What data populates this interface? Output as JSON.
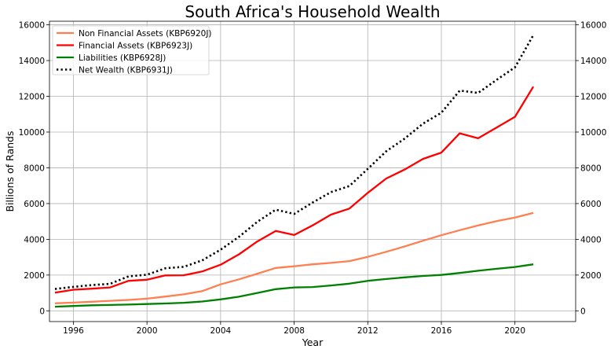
{
  "chart_data": {
    "type": "line",
    "title": "South Africa's Household Wealth",
    "xlabel": "Year",
    "ylabel": "Billions of Rands",
    "xlim": [
      1994.7,
      2023.3
    ],
    "ylim": [
      -600,
      16200
    ],
    "x_ticks": [
      1996,
      2000,
      2004,
      2008,
      2012,
      2016,
      2020
    ],
    "y_ticks": [
      0,
      2000,
      4000,
      6000,
      8000,
      10000,
      12000,
      14000,
      16000
    ],
    "grid": true,
    "legend_position": "top-left",
    "secondary_y_axis": true,
    "x": [
      1995,
      1996,
      1997,
      1998,
      1999,
      2000,
      2001,
      2002,
      2003,
      2004,
      2005,
      2006,
      2007,
      2008,
      2009,
      2010,
      2011,
      2012,
      2013,
      2014,
      2015,
      2016,
      2017,
      2018,
      2019,
      2020,
      2021
    ],
    "series": [
      {
        "name": "Non Financial Assets (KBP6920J)",
        "color": "#ff7f50",
        "style": "solid",
        "values": [
          420,
          460,
          510,
          560,
          610,
          680,
          800,
          920,
          1100,
          1480,
          1760,
          2080,
          2400,
          2490,
          2600,
          2680,
          2780,
          3020,
          3300,
          3600,
          3920,
          4230,
          4510,
          4780,
          5020,
          5220,
          5480
        ]
      },
      {
        "name": "Financial Assets (KBP6923J)",
        "color": "#ff0000",
        "style": "solid",
        "values": [
          1020,
          1180,
          1240,
          1310,
          1680,
          1740,
          1980,
          1990,
          2200,
          2580,
          3160,
          3880,
          4470,
          4240,
          4780,
          5380,
          5720,
          6600,
          7400,
          7900,
          8500,
          8850,
          9930,
          9650,
          10250,
          10850,
          12540
        ]
      },
      {
        "name": "Liabilities (KBP6928J)",
        "color": "#008000",
        "style": "solid",
        "values": [
          230,
          270,
          310,
          330,
          350,
          380,
          410,
          450,
          520,
          640,
          790,
          1000,
          1210,
          1310,
          1330,
          1420,
          1520,
          1680,
          1780,
          1870,
          1950,
          2010,
          2120,
          2240,
          2350,
          2450,
          2600
        ]
      },
      {
        "name": "Net Wealth (KBP6931J)",
        "color": "#000000",
        "style": "dotted",
        "values": [
          1220,
          1340,
          1440,
          1510,
          1930,
          2020,
          2380,
          2460,
          2820,
          3420,
          4140,
          4980,
          5660,
          5420,
          6060,
          6640,
          6980,
          7940,
          8920,
          9630,
          10470,
          11080,
          12320,
          12190,
          12920,
          13620,
          15420
        ]
      }
    ]
  }
}
